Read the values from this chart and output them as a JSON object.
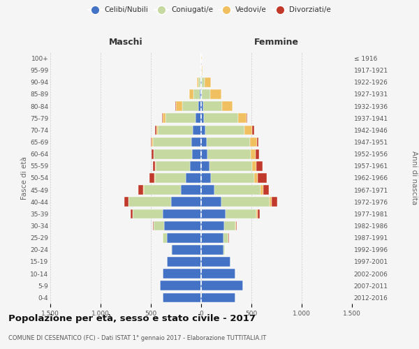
{
  "age_groups": [
    "0-4",
    "5-9",
    "10-14",
    "15-19",
    "20-24",
    "25-29",
    "30-34",
    "35-39",
    "40-44",
    "45-49",
    "50-54",
    "55-59",
    "60-64",
    "65-69",
    "70-74",
    "75-79",
    "80-84",
    "85-89",
    "90-94",
    "95-99",
    "100+"
  ],
  "birth_years": [
    "2012-2016",
    "2007-2011",
    "2002-2006",
    "1997-2001",
    "1992-1996",
    "1987-1991",
    "1982-1986",
    "1977-1981",
    "1972-1976",
    "1967-1971",
    "1962-1966",
    "1957-1961",
    "1952-1956",
    "1947-1951",
    "1942-1946",
    "1937-1941",
    "1932-1936",
    "1927-1931",
    "1922-1926",
    "1917-1921",
    "≤ 1916"
  ],
  "male_celibi": [
    380,
    410,
    380,
    340,
    290,
    340,
    370,
    380,
    300,
    200,
    150,
    110,
    90,
    100,
    80,
    55,
    30,
    15,
    8,
    3,
    2
  ],
  "male_coniugati": [
    0,
    0,
    0,
    2,
    10,
    40,
    100,
    300,
    420,
    370,
    310,
    340,
    380,
    380,
    350,
    300,
    160,
    60,
    20,
    2,
    0
  ],
  "male_vedovi": [
    0,
    0,
    0,
    0,
    0,
    2,
    2,
    2,
    5,
    5,
    5,
    5,
    5,
    10,
    15,
    30,
    60,
    40,
    15,
    2,
    0
  ],
  "male_divorziati": [
    0,
    0,
    0,
    0,
    0,
    2,
    5,
    20,
    40,
    50,
    50,
    25,
    15,
    10,
    10,
    5,
    5,
    0,
    0,
    0,
    0
  ],
  "female_celibi": [
    340,
    420,
    340,
    290,
    220,
    220,
    230,
    240,
    200,
    130,
    100,
    80,
    60,
    55,
    40,
    30,
    20,
    10,
    8,
    3,
    2
  ],
  "female_coniugati": [
    0,
    0,
    0,
    3,
    15,
    50,
    110,
    310,
    480,
    460,
    430,
    430,
    430,
    430,
    390,
    340,
    190,
    80,
    30,
    3,
    0
  ],
  "female_vedovi": [
    0,
    0,
    0,
    0,
    0,
    3,
    5,
    10,
    20,
    25,
    30,
    40,
    55,
    70,
    80,
    80,
    100,
    110,
    60,
    8,
    2
  ],
  "female_divorziati": [
    0,
    0,
    0,
    0,
    0,
    3,
    8,
    20,
    60,
    60,
    90,
    60,
    30,
    15,
    15,
    10,
    5,
    0,
    0,
    0,
    0
  ],
  "color_celibi": "#4472c4",
  "color_coniugati": "#c5d9a0",
  "color_vedovi": "#f0c060",
  "color_divorziati": "#c0392b",
  "title": "Popolazione per età, sesso e stato civile - 2017",
  "subtitle": "COMUNE DI CESENATICO (FC) - Dati ISTAT 1° gennaio 2017 - Elaborazione TUTTITALIA.IT",
  "ylabel_left": "Fasce di età",
  "ylabel_right": "Anni di nascita",
  "xlabel_left": "Maschi",
  "xlabel_right": "Femmine",
  "xlim": 1500,
  "bg_color": "#f5f5f5",
  "grid_color": "#cccccc"
}
